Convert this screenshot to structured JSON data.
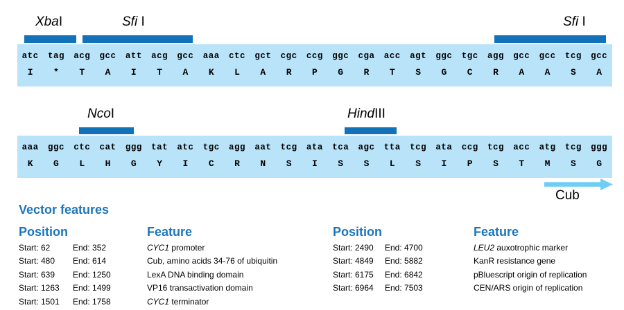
{
  "palette": {
    "site_bar_blue": "#1172b9",
    "sequence_box_blue": "#b8e3f8",
    "heading_blue": "#1b75bc",
    "arrow_blue": "#70cdf4"
  },
  "sequence_rows": [
    {
      "sites": [
        {
          "id": "xbai",
          "italic": "Xba",
          "roman": "I"
        },
        {
          "id": "sfii-1",
          "italic": "Sfi",
          "roman": " I"
        },
        {
          "id": "sfii-2",
          "italic": "Sfi",
          "roman": " I"
        }
      ],
      "codons": [
        "atc",
        "tag",
        "acg",
        "gcc",
        "att",
        "acg",
        "gcc",
        "aaa",
        "ctc",
        "gct",
        "cgc",
        "ccg",
        "ggc",
        "cga",
        "acc",
        "agt",
        "ggc",
        "tgc",
        "agg",
        "gcc",
        "gcc",
        "tcg",
        "gcc"
      ],
      "amino_acids": [
        "I",
        "*",
        "T",
        "A",
        "I",
        "T",
        "A",
        "K",
        "L",
        "A",
        "R",
        "P",
        "G",
        "R",
        "T",
        "S",
        "G",
        "C",
        "R",
        "A",
        "A",
        "S",
        "A"
      ]
    },
    {
      "sites": [
        {
          "id": "ncoi",
          "italic": "Nco",
          "roman": "I"
        },
        {
          "id": "hindiii",
          "italic": "Hind",
          "roman": "III"
        }
      ],
      "codons": [
        "aaa",
        "ggc",
        "ctc",
        "cat",
        "ggg",
        "tat",
        "atc",
        "tgc",
        "agg",
        "aat",
        "tcg",
        "ata",
        "tca",
        "agc",
        "tta",
        "tcg",
        "ata",
        "ccg",
        "tcg",
        "acc",
        "atg",
        "tcg",
        "ggg"
      ],
      "amino_acids": [
        "K",
        "G",
        "L",
        "H",
        "G",
        "Y",
        "I",
        "C",
        "R",
        "N",
        "S",
        "I",
        "S",
        "S",
        "L",
        "S",
        "I",
        "P",
        "S",
        "T",
        "M",
        "S",
        "G"
      ]
    }
  ],
  "cub_arrow_label": "Cub",
  "vector_features": {
    "title": "Vector features",
    "columns": [
      {
        "position_header": "Position",
        "feature_header": "Feature",
        "rows": [
          {
            "start": "Start: 62",
            "end": "End: 352",
            "feature_italic": "CYC1",
            "feature_rest": " promoter"
          },
          {
            "start": "Start: 480",
            "end": "End: 614",
            "feature_italic": "",
            "feature_rest": "Cub, amino acids 34-76 of ubiquitin"
          },
          {
            "start": "Start: 639",
            "end": "End: 1250",
            "feature_italic": "",
            "feature_rest": "LexA DNA binding domain"
          },
          {
            "start": "Start: 1263",
            "end": "End: 1499",
            "feature_italic": "",
            "feature_rest": "VP16 transactivation domain"
          },
          {
            "start": "Start: 1501",
            "end": "End: 1758",
            "feature_italic": "CYC1",
            "feature_rest": " terminator"
          }
        ]
      },
      {
        "position_header": "Position",
        "feature_header": "Feature",
        "rows": [
          {
            "start": "Start: 2490",
            "end": "End: 4700",
            "feature_italic": "LEU2",
            "feature_rest": " auxotrophic marker"
          },
          {
            "start": "Start: 4849",
            "end": "End: 5882",
            "feature_italic": "",
            "feature_rest": "KanR resistance gene"
          },
          {
            "start": "Start: 6175",
            "end": "End: 6842",
            "feature_italic": "",
            "feature_rest": "pBluescript origin of replication"
          },
          {
            "start": "Start: 6964",
            "end": "End: 7503",
            "feature_italic": "",
            "feature_rest": "CEN/ARS origin of replication"
          }
        ]
      }
    ]
  }
}
